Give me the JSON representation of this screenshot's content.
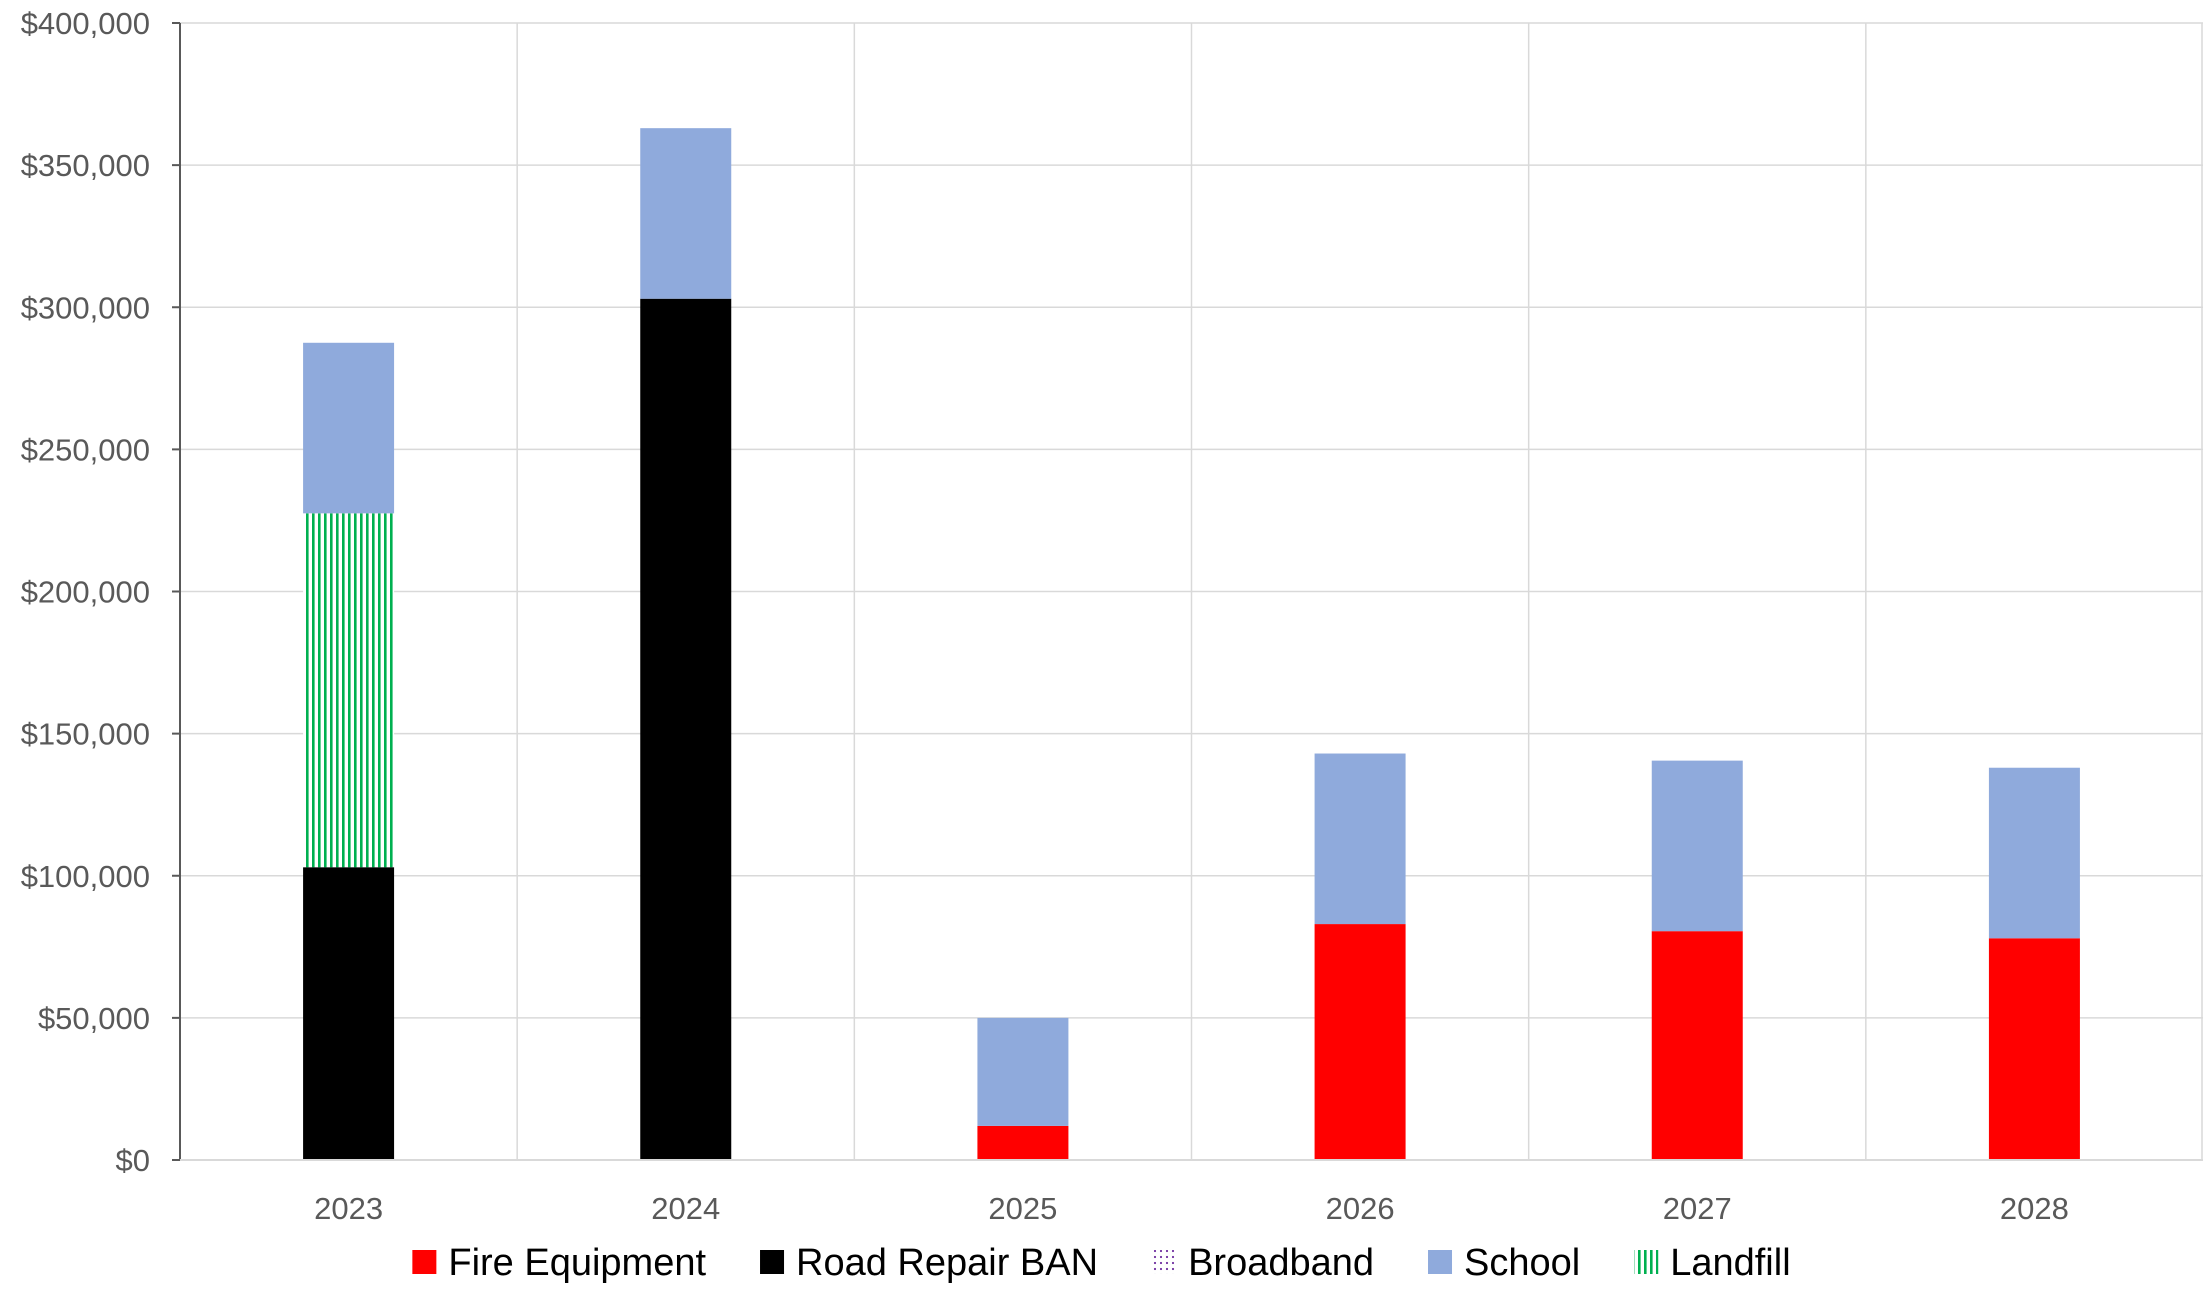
{
  "colors": {
    "fire_equipment": "#ff0000",
    "road_repair_ban": "#000000",
    "broadband": "#7030a0",
    "school": "#8faadc",
    "landfill": "#00b050",
    "gridline": "#d9d9d9",
    "axis": "#595959",
    "tick_text": "#595959"
  },
  "chart_data": {
    "type": "bar",
    "stacked": true,
    "title": "",
    "xlabel": "",
    "ylabel": "",
    "categories": [
      "2023",
      "2024",
      "2025",
      "2026",
      "2027",
      "2028"
    ],
    "ylim": [
      0,
      400000
    ],
    "y_ticks": [
      0,
      50000,
      100000,
      150000,
      200000,
      250000,
      300000,
      350000,
      400000
    ],
    "y_tick_labels": [
      "$0",
      "$50,000",
      "$100,000",
      "$150,000",
      "$200,000",
      "$250,000",
      "$300,000",
      "$350,000",
      "$400,000"
    ],
    "grid": true,
    "legend_position": "bottom",
    "series": [
      {
        "name": "Fire Equipment",
        "color_key": "fire_equipment",
        "pattern": "solid",
        "values": [
          0,
          0,
          12000,
          83000,
          80500,
          78000
        ]
      },
      {
        "name": "Road Repair BAN",
        "color_key": "road_repair_ban",
        "pattern": "solid",
        "values": [
          103000,
          303000,
          0,
          0,
          0,
          0
        ]
      },
      {
        "name": "Broadband",
        "color_key": "broadband",
        "pattern": "dotted",
        "values": [
          0,
          0,
          0,
          0,
          0,
          0
        ]
      },
      {
        "name": "Landfill",
        "color_key": "landfill",
        "pattern": "vertical-lines",
        "values": [
          124500,
          0,
          0,
          0,
          0,
          0
        ]
      },
      {
        "name": "School",
        "color_key": "school",
        "pattern": "solid",
        "values": [
          60000,
          60000,
          38000,
          60000,
          60000,
          60000
        ]
      }
    ],
    "legend_order": [
      "Fire Equipment",
      "Road Repair BAN",
      "Broadband",
      "School",
      "Landfill"
    ]
  }
}
